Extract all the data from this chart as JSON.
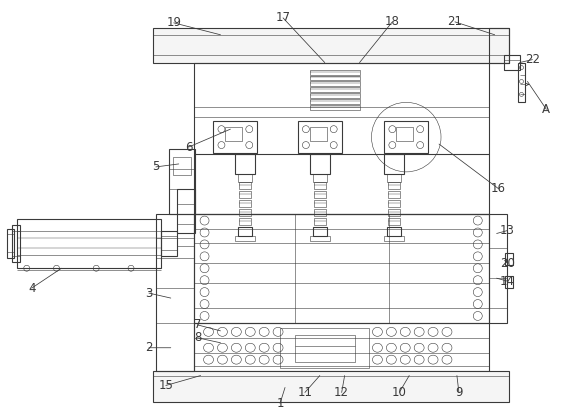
{
  "bg_color": "#ffffff",
  "line_color": "#3a3a3a",
  "lw": 0.8,
  "tlw": 0.4,
  "fs": 8.5
}
